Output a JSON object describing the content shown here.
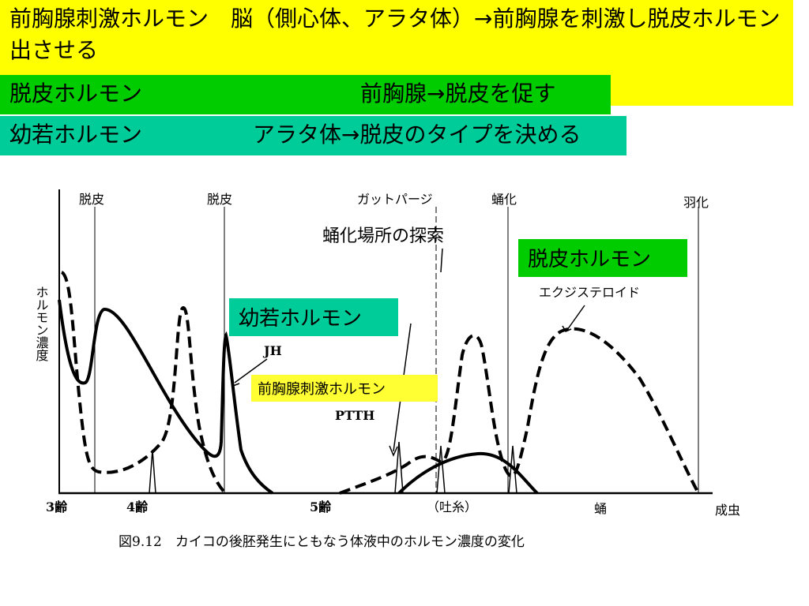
{
  "header": {
    "rows": [
      {
        "text": "前胸腺刺激ホルモン　脳（側心体、アラタ体）→前胸腺を刺激し脱皮ホルモン出させる"
      },
      {
        "name": "脱皮ホルモン",
        "text": "前胸腺→脱皮を促す"
      },
      {
        "name": "幼若ホルモン",
        "text": "アラタ体→脱皮のタイプを決める"
      }
    ]
  },
  "figure": {
    "events": [
      "脱皮",
      "脱皮",
      "ガットパージ",
      "蛹化",
      "羽化"
    ],
    "search_label": "蛹化場所の探索",
    "y_label": "ホルモン濃度",
    "callouts": {
      "ecdysone_box": "脱皮ホルモン",
      "ecdysone": "エクジステロイド",
      "jh_box": "幼若ホルモン",
      "jh": "JH",
      "ptth_box": "前胸腺刺激ホルモン",
      "ptth": "PTTH"
    },
    "stages": [
      "3齢",
      "4齢",
      "5齢",
      "（吐糸）",
      "蛹",
      "成虫"
    ],
    "caption": "図9.12　カイコの後胚発生にともなう体液中のホルモン濃度の変化"
  }
}
